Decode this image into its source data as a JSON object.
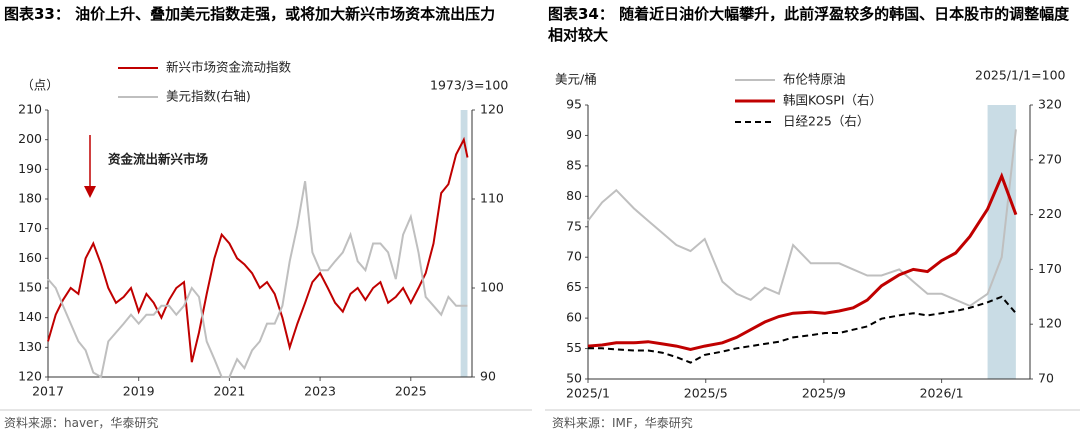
{
  "chart_data": [
    {
      "type": "line",
      "title": "图表33： 油价上升、叠加美元指数走强，或将加大新兴市场资本流出压力",
      "y_unit": "（点）",
      "note": "1973/3=100",
      "annotation": "资金流出新兴市场",
      "source": "资料来源：haver，华泰研究",
      "x": [
        2017,
        2017.17,
        2017.33,
        2017.5,
        2017.67,
        2017.83,
        2018,
        2018.17,
        2018.33,
        2018.5,
        2018.67,
        2018.83,
        2019,
        2019.17,
        2019.33,
        2019.5,
        2019.67,
        2019.83,
        2020,
        2020.17,
        2020.33,
        2020.5,
        2020.67,
        2020.83,
        2021,
        2021.17,
        2021.33,
        2021.5,
        2021.67,
        2021.83,
        2022,
        2022.17,
        2022.33,
        2022.5,
        2022.67,
        2022.83,
        2023,
        2023.17,
        2023.33,
        2023.5,
        2023.67,
        2023.83,
        2024,
        2024.17,
        2024.33,
        2024.5,
        2024.67,
        2024.83,
        2025,
        2025.17,
        2025.33,
        2025.5,
        2025.67,
        2025.83,
        2026,
        2026.17,
        2026.25
      ],
      "series": [
        {
          "name": "新兴市场资金流动指数",
          "color": "#c00000",
          "values": [
            132,
            141,
            146,
            150,
            148,
            160,
            165,
            158,
            150,
            145,
            147,
            150,
            142,
            148,
            145,
            140,
            146,
            150,
            152,
            125,
            135,
            148,
            160,
            168,
            165,
            160,
            158,
            155,
            150,
            152,
            148,
            140,
            130,
            138,
            145,
            152,
            155,
            150,
            145,
            142,
            148,
            150,
            146,
            150,
            152,
            145,
            147,
            150,
            145,
            150,
            155,
            165,
            182,
            185,
            195,
            200,
            194
          ]
        },
        {
          "name": "美元指数(右轴)",
          "color": "#bfbfbf",
          "axis": "y2",
          "values": [
            101,
            100,
            98,
            96,
            94,
            93,
            90.5,
            90,
            94,
            95,
            96,
            97,
            96,
            97,
            97,
            98,
            98,
            97,
            98,
            100,
            99,
            94,
            92,
            90,
            90,
            92,
            91,
            93,
            94,
            96,
            96,
            98,
            103,
            107,
            112,
            104,
            102,
            102,
            103,
            104,
            106,
            103,
            102,
            105,
            105,
            104,
            101,
            106,
            108,
            104,
            99,
            98,
            97,
            99,
            98,
            98,
            98
          ]
        }
      ],
      "xlim": [
        2017,
        2026.35
      ],
      "xticks": [
        2017,
        2019,
        2021,
        2023,
        2025
      ],
      "ylim": [
        120,
        210
      ],
      "yticks": [
        120,
        130,
        140,
        150,
        160,
        170,
        180,
        190,
        200,
        210
      ],
      "y2lim": [
        90,
        120
      ],
      "y2ticks": [
        90,
        100,
        110,
        120
      ],
      "shade": [
        2026.1,
        2026.25
      ]
    },
    {
      "type": "line",
      "title": "图表34： 随着近日油价大幅攀升，此前浮盈较多的韩国、日本股市的调整幅度相对较大",
      "y_unit": "美元/桶",
      "note": "2025/1/1=100",
      "source": "资料来源：IMF，华泰研究",
      "x": [
        2025,
        2025.04,
        2025.08,
        2025.13,
        2025.17,
        2025.21,
        2025.25,
        2025.29,
        2025.33,
        2025.38,
        2025.42,
        2025.46,
        2025.5,
        2025.54,
        2025.58,
        2025.63,
        2025.67,
        2025.71,
        2025.75,
        2025.79,
        2025.83,
        2025.88,
        2025.92,
        2025.96,
        2026,
        2026.04,
        2026.08,
        2026.13,
        2026.17,
        2026.21
      ],
      "series": [
        {
          "name": "布伦特原油",
          "color": "#bfbfbf",
          "values": [
            76,
            79,
            81,
            78,
            76,
            74,
            72,
            71,
            73,
            66,
            64,
            63,
            65,
            64,
            72,
            69,
            69,
            69,
            68,
            67,
            67,
            68,
            66,
            64,
            64,
            63,
            62,
            64,
            70,
            91
          ]
        },
        {
          "name": "韩国KOSPI（右）",
          "color": "#c00000",
          "axis": "y2",
          "width": 3,
          "values": [
            100,
            101,
            103,
            103,
            104,
            102,
            100,
            97,
            100,
            103,
            108,
            115,
            122,
            127,
            130,
            131,
            130,
            132,
            135,
            142,
            155,
            165,
            170,
            168,
            178,
            185,
            200,
            225,
            255,
            220
          ]
        },
        {
          "name": "日经225（右）",
          "color": "#000000",
          "axis": "y2",
          "style": "dashed",
          "values": [
            98,
            98,
            97,
            96,
            96,
            94,
            90,
            85,
            92,
            95,
            98,
            100,
            102,
            104,
            108,
            110,
            112,
            112,
            115,
            118,
            125,
            128,
            130,
            128,
            130,
            132,
            135,
            140,
            145,
            130
          ]
        }
      ],
      "xlim": [
        2025,
        2026.25
      ],
      "xticks": [
        {
          "value": 2025,
          "label": "2025/1"
        },
        {
          "value": 2025.333,
          "label": "2025/5"
        },
        {
          "value": 2025.667,
          "label": "2025/9"
        },
        {
          "value": 2026,
          "label": "2026/1"
        }
      ],
      "ylim": [
        50,
        95
      ],
      "yticks": [
        50,
        55,
        60,
        65,
        70,
        75,
        80,
        85,
        90,
        95
      ],
      "y2lim": [
        70,
        320
      ],
      "y2ticks": [
        70,
        120,
        170,
        220,
        270,
        320
      ],
      "shade": [
        2026.13,
        2026.21
      ]
    }
  ]
}
